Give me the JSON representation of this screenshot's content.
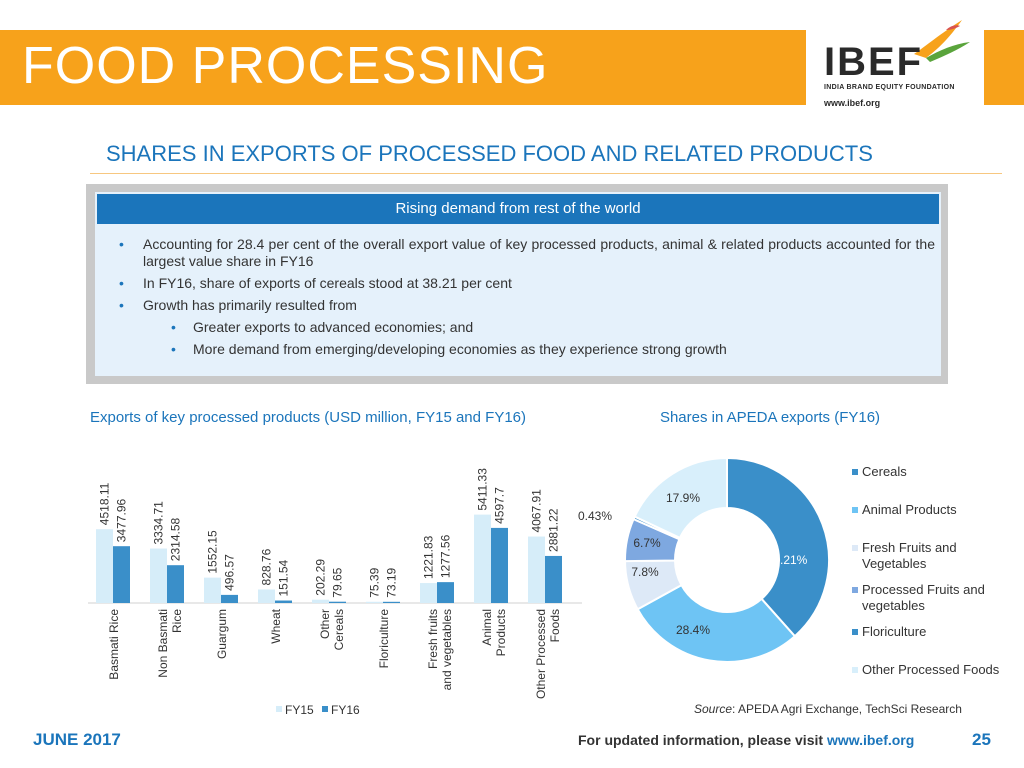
{
  "header": {
    "title": "FOOD PROCESSING",
    "logo_text": "IBEF",
    "logo_subtitle": "INDIA BRAND EQUITY FOUNDATION",
    "logo_url": "www.ibef.org"
  },
  "section_title": "SHARES IN EXPORTS OF PROCESSED FOOD AND RELATED PRODUCTS",
  "info_box": {
    "header": "Rising demand from rest of the world",
    "bullets": [
      "Accounting for 28.4 per cent of the overall export value of key processed products, animal & related products accounted for the largest value share in FY16",
      "In FY16, share of exports of cereals stood at 38.21 per cent",
      "Growth has primarily resulted from"
    ],
    "sub_bullets": [
      "Greater exports to advanced economies; and",
      "More demand from emerging/developing economies as they experience strong growth"
    ]
  },
  "colors": {
    "orange": "#f7a21b",
    "blue": "#1b75bb",
    "fy15": "#d6edf9",
    "fy16": "#3a8fc9"
  },
  "chart_data": [
    {
      "type": "bar",
      "title": "Exports of key processed products (USD million, FY15 and FY16)",
      "categories": [
        "Basmati Rice",
        "Non Basmati Rice",
        "Guargum",
        "Wheat",
        "Other Cereals",
        "Floriculture",
        "Fresh fruits and vegetables",
        "Animal Products",
        "Other Processed Foods"
      ],
      "series": [
        {
          "name": "FY15",
          "values": [
            4518.11,
            3334.71,
            1552.15,
            828.76,
            202.29,
            75.39,
            1221.83,
            5411.33,
            4067.91
          ]
        },
        {
          "name": "FY16",
          "values": [
            3477.96,
            2314.58,
            496.57,
            151.54,
            79.65,
            73.19,
            1277.56,
            4597.7,
            2881.22
          ]
        }
      ],
      "value_labels": {
        "FY15": [
          "4518.11",
          "3334.71",
          "1552.15",
          "828.76",
          "202.29",
          "75.39",
          "1221.83",
          "5411.33",
          "4067.91"
        ],
        "FY16": [
          "3477.96",
          "2314.58",
          "496.57",
          "151.54",
          "79.65",
          "73.19",
          "1277.56",
          "4597.7",
          "2881.22"
        ]
      },
      "ylim": [
        0,
        6000
      ],
      "legend": "bottom",
      "grid": false
    },
    {
      "type": "pie",
      "title": "Shares in APEDA exports (FY16)",
      "donut": true,
      "categories": [
        "Cereals",
        "Animal Products",
        "Fresh Fruits and Vegetables",
        "Processed Fruits and vegetables",
        "Floriculture",
        "Other Processed Foods"
      ],
      "values": [
        38.21,
        28.4,
        7.8,
        6.7,
        0.43,
        17.9
      ],
      "value_labels": [
        "38.21%",
        "28.4%",
        "7.8%",
        "6.7%",
        "0.43%",
        "17.9%"
      ],
      "colors": [
        "#3a8fc9",
        "#6ec4f4",
        "#dde9f7",
        "#7ea8e0",
        "#3a8fc9",
        "#d8effb"
      ],
      "legend": "right"
    }
  ],
  "source": {
    "label": "Source",
    "text": ": APEDA Agri Exchange, TechSci Research"
  },
  "footer": {
    "date": "JUNE 2017",
    "note": "For updated information, please visit ",
    "link": "www.ibef.org",
    "page": "25"
  }
}
